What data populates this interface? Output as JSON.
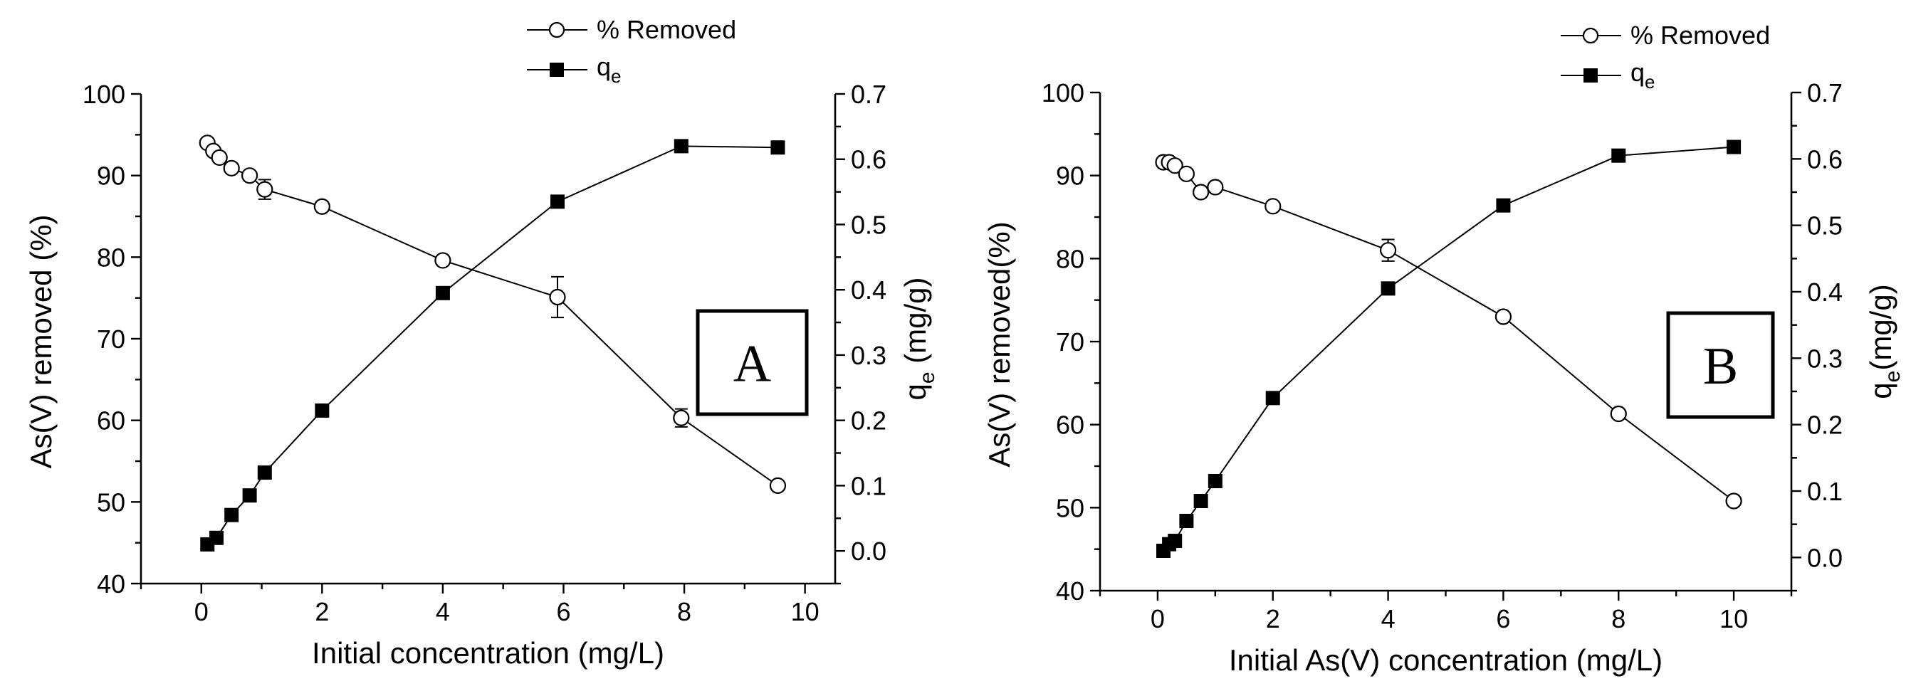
{
  "chart_data": [
    {
      "type": "line",
      "panel_label": "A",
      "xlabel": "Initial concentration (mg/L)",
      "ylabel": "As(V) removed (%)",
      "y2label": "q",
      "y2label_sub": "e",
      "y2label_suffix": " (mg/g)",
      "xlim": [
        -1,
        10.5
      ],
      "ylim": [
        40,
        100
      ],
      "y2lim": [
        -0.05,
        0.7
      ],
      "xticks": [
        0,
        2,
        4,
        6,
        8,
        10
      ],
      "yticks": [
        40,
        50,
        60,
        70,
        80,
        90,
        100
      ],
      "y2ticks": [
        0.0,
        0.1,
        0.2,
        0.3,
        0.4,
        0.5,
        0.6,
        0.7
      ],
      "y2tick_labels": [
        "0.0",
        "0.1",
        "0.2",
        "0.3",
        "0.4",
        "0.5",
        "0.6",
        "0.7"
      ],
      "legend": {
        "position": "top-right",
        "entries": [
          "% Removed",
          "q"
        ],
        "entry_sub": [
          "",
          "e"
        ]
      },
      "series": [
        {
          "name": "% Removed",
          "axis": "left",
          "marker": "open-circle",
          "x": [
            0.1,
            0.2,
            0.3,
            0.5,
            0.8,
            1.05,
            2.0,
            4.0,
            5.9,
            7.95,
            9.55
          ],
          "values": [
            94.0,
            93.0,
            92.2,
            90.9,
            90.0,
            88.3,
            86.2,
            79.6,
            75.1,
            60.3,
            52.0
          ],
          "error": [
            0.3,
            0.4,
            0.3,
            0.3,
            0.4,
            1.2,
            0.6,
            0.5,
            2.5,
            1.1,
            0.4
          ]
        },
        {
          "name": "q_e",
          "axis": "right",
          "marker": "filled-square",
          "x": [
            0.1,
            0.25,
            0.5,
            0.8,
            1.05,
            2.0,
            4.0,
            5.9,
            7.95,
            9.55
          ],
          "values": [
            0.01,
            0.02,
            0.055,
            0.085,
            0.12,
            0.215,
            0.395,
            0.535,
            0.62,
            0.618
          ]
        }
      ]
    },
    {
      "type": "line",
      "panel_label": "B",
      "xlabel": "Initial As(V) concentration (mg/L)",
      "ylabel": "As(V) removed(%)",
      "y2label": "q",
      "y2label_sub": "e",
      "y2label_suffix": "(mg/g)",
      "xlim": [
        -1,
        11
      ],
      "ylim": [
        40,
        100
      ],
      "y2lim": [
        -0.05,
        0.7
      ],
      "xticks": [
        0,
        2,
        4,
        6,
        8,
        10
      ],
      "yticks": [
        40,
        50,
        60,
        70,
        80,
        90,
        100
      ],
      "y2ticks": [
        0.0,
        0.1,
        0.2,
        0.3,
        0.4,
        0.5,
        0.6,
        0.7
      ],
      "y2tick_labels": [
        "0.0",
        "0.1",
        "0.2",
        "0.3",
        "0.4",
        "0.5",
        "0.6",
        "0.7"
      ],
      "legend": {
        "position": "top-right",
        "entries": [
          "% Removed",
          "q"
        ],
        "entry_sub": [
          "",
          "e"
        ]
      },
      "series": [
        {
          "name": "% Removed",
          "axis": "left",
          "marker": "open-circle",
          "x": [
            0.1,
            0.2,
            0.3,
            0.5,
            0.75,
            1.0,
            2.0,
            4.0,
            6.0,
            8.0,
            10.0
          ],
          "values": [
            91.6,
            91.6,
            91.2,
            90.2,
            88.0,
            88.6,
            86.3,
            81.0,
            73.0,
            61.3,
            50.8
          ],
          "error": [
            0.4,
            0.4,
            0.4,
            0.4,
            0.5,
            0.4,
            0.5,
            1.3,
            0.5,
            0.5,
            0.4
          ]
        },
        {
          "name": "q_e",
          "axis": "right",
          "marker": "filled-square",
          "x": [
            0.1,
            0.2,
            0.3,
            0.5,
            0.75,
            1.0,
            2.0,
            4.0,
            6.0,
            8.0,
            10.0
          ],
          "values": [
            0.01,
            0.02,
            0.025,
            0.055,
            0.085,
            0.115,
            0.24,
            0.405,
            0.53,
            0.605,
            0.618
          ]
        }
      ]
    }
  ]
}
